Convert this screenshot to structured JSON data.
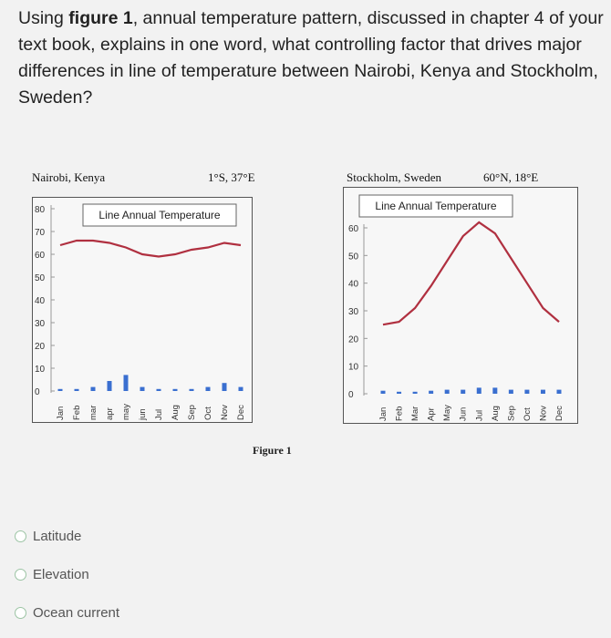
{
  "question": {
    "part1": "Using ",
    "bold": "figure 1",
    "part2": ", annual temperature pattern, discussed in chapter 4 of your text book, explains in one word, what controlling factor that drives major differences in line of temperature between Nairobi, Kenya and Stockholm, Sweden?"
  },
  "figure": {
    "caption": "Figure 1",
    "nairobi": {
      "city": "Nairobi, Kenya",
      "coords": "1°S, 37°E",
      "legend": "Line Annual Temperature"
    },
    "stockholm": {
      "city": "Stockholm, Sweden",
      "coords": "60°N, 18°E",
      "legend": "Line Annual Temperature"
    }
  },
  "chart_data": [
    {
      "type": "line",
      "title": "Nairobi, Kenya",
      "subtitle": "1°S, 37°E",
      "categories": [
        "Jan",
        "Feb",
        "mar",
        "apr",
        "may",
        "jun",
        "Jul",
        "Aug",
        "Sep",
        "Oct",
        "Nov",
        "Dec"
      ],
      "y_ticks": [
        0,
        10,
        20,
        30,
        40,
        50,
        60,
        70,
        80
      ],
      "ylim": [
        0,
        80
      ],
      "series": [
        {
          "name": "Line Annual Temperature",
          "values": [
            64,
            66,
            66,
            65,
            63,
            60,
            59,
            60,
            62,
            63,
            65,
            64
          ]
        }
      ],
      "bars": [
        1,
        1,
        2,
        5,
        8,
        2,
        1,
        1,
        1,
        2,
        4,
        2
      ],
      "line_color": "#b03040",
      "bar_color": "#3a6fd0"
    },
    {
      "type": "line",
      "title": "Stockholm, Sweden",
      "subtitle": "60°N, 18°E",
      "categories": [
        "Jan",
        "Feb",
        "Mar",
        "Apr",
        "May",
        "Jun",
        "Jul",
        "Aug",
        "Sep",
        "Oct",
        "Nov",
        "Dec"
      ],
      "y_ticks": [
        0,
        10,
        20,
        30,
        40,
        50,
        60
      ],
      "ylim": [
        0,
        60
      ],
      "series": [
        {
          "name": "Line Annual Temperature",
          "values": [
            25,
            26,
            31,
            39,
            48,
            57,
            62,
            58,
            49,
            40,
            31,
            26
          ]
        }
      ],
      "bars": [
        1.5,
        1,
        1,
        1.5,
        2,
        2,
        3,
        3,
        2,
        2,
        2,
        2
      ],
      "line_color": "#b03040",
      "bar_color": "#3a6fd0"
    }
  ],
  "options": [
    {
      "label": "Latitude"
    },
    {
      "label": "Elevation"
    },
    {
      "label": "Ocean current"
    }
  ]
}
